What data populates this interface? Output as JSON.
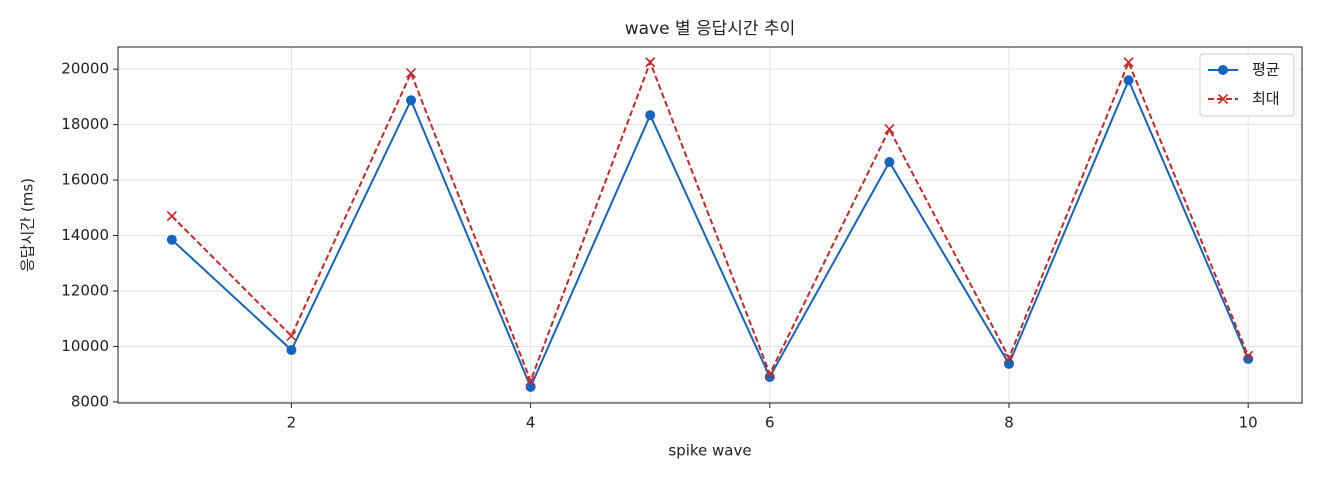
{
  "chart_data": {
    "type": "line",
    "title": "wave 별 응답시간 추이",
    "x_label": "spike wave",
    "y_label": "응답시간 (ms)",
    "x": [
      1,
      2,
      3,
      4,
      5,
      6,
      7,
      8,
      9,
      10
    ],
    "series": [
      {
        "name": "평균",
        "color": "#1565c0",
        "marker": "circle",
        "linestyle": "solid",
        "values": [
          13850,
          9870,
          18880,
          8540,
          18340,
          8900,
          16650,
          9370,
          19600,
          9550
        ]
      },
      {
        "name": "최대",
        "color": "#c62828",
        "marker": "x",
        "linestyle": "dashed",
        "values": [
          14700,
          10380,
          19860,
          8760,
          20250,
          9010,
          17840,
          9590,
          20250,
          9660
        ]
      }
    ],
    "xlim": [
      0.55,
      10.45
    ],
    "xticks": [
      2,
      4,
      6,
      8,
      10
    ],
    "ylim": [
      7960,
      20800
    ],
    "yticks": [
      8000,
      10000,
      12000,
      14000,
      16000,
      18000,
      20000
    ],
    "grid": true,
    "legend": "upper right"
  }
}
